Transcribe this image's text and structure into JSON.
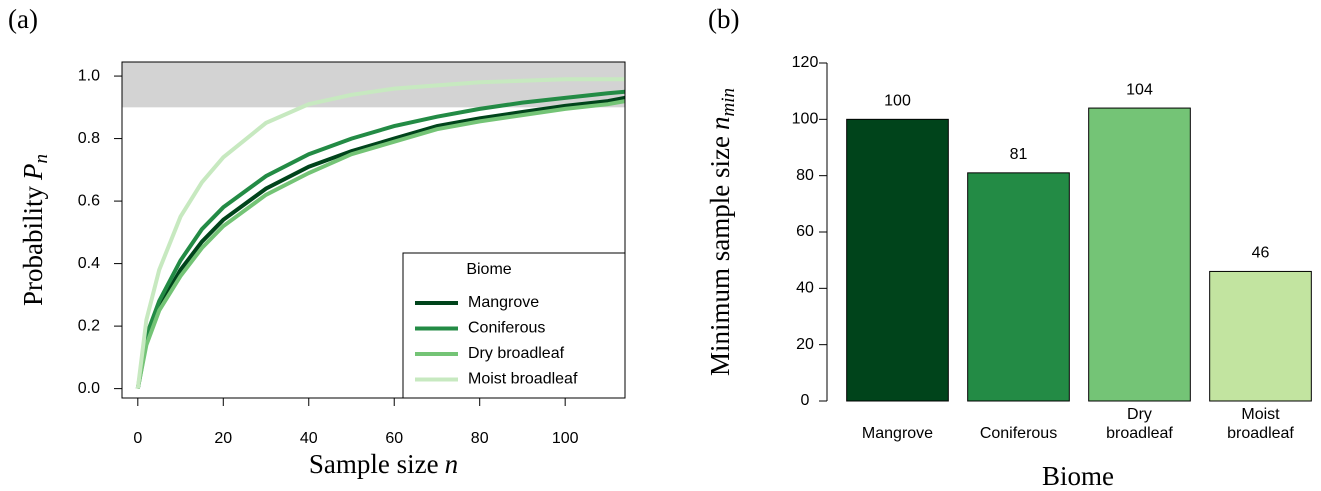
{
  "chart_data": [
    {
      "type": "line",
      "label": "(a)",
      "xlabel": "Sample size",
      "xlabel_symbol": "n",
      "ylabel": "Probability",
      "ylabel_symbol": "P",
      "ylabel_subscript": "n",
      "x": [
        0,
        2,
        5,
        10,
        15,
        20,
        30,
        40,
        50,
        60,
        70,
        80,
        90,
        100,
        110,
        114
      ],
      "series": [
        {
          "name": "Mangrove",
          "color": "#00441b",
          "values": [
            0,
            0.15,
            0.26,
            0.38,
            0.47,
            0.54,
            0.64,
            0.71,
            0.76,
            0.8,
            0.84,
            0.865,
            0.885,
            0.905,
            0.92,
            0.93
          ]
        },
        {
          "name": "Coniferous",
          "color": "#238b45",
          "values": [
            0,
            0.17,
            0.28,
            0.41,
            0.51,
            0.58,
            0.68,
            0.75,
            0.8,
            0.84,
            0.87,
            0.895,
            0.915,
            0.93,
            0.945,
            0.95
          ]
        },
        {
          "name": "Dry broadleaf",
          "color": "#74c476",
          "values": [
            0,
            0.14,
            0.25,
            0.36,
            0.45,
            0.52,
            0.62,
            0.69,
            0.75,
            0.79,
            0.83,
            0.855,
            0.875,
            0.895,
            0.91,
            0.92
          ]
        },
        {
          "name": "Moist broadleaf",
          "color": "#c7e9c0",
          "values": [
            0,
            0.22,
            0.38,
            0.55,
            0.66,
            0.74,
            0.85,
            0.91,
            0.94,
            0.96,
            0.97,
            0.98,
            0.985,
            0.99,
            0.99,
            0.99
          ]
        }
      ],
      "xlim": [
        -3.7,
        114
      ],
      "ylim": [
        -0.03,
        1.045
      ],
      "xticks": [
        0,
        20,
        40,
        60,
        80,
        100
      ],
      "yticks": [
        {
          "value": 0,
          "label": "0.0"
        },
        0.2,
        0.4,
        0.6,
        0.8,
        {
          "value": 1,
          "label": "1.0"
        }
      ],
      "shaded_band": [
        0.9,
        1.045
      ],
      "shaded_color": "#d3d3d3",
      "legend_title": "Biome",
      "legend": "lower right"
    },
    {
      "type": "bar",
      "label": "(b)",
      "xlabel": "Biome",
      "ylabel": "Minimum sample size",
      "ylabel_symbol": "n",
      "ylabel_subscript": "min",
      "categories": [
        "Mangrove",
        "Coniferous",
        "Dry\nbroadleaf",
        "Moist\nbroadleaf"
      ],
      "values": [
        100,
        81,
        104,
        46
      ],
      "colors": [
        "#00441b",
        "#238b45",
        "#74c476",
        "#c2e4a0"
      ],
      "ylim": [
        0,
        120
      ],
      "yticks": [
        0,
        20,
        40,
        60,
        80,
        100,
        120
      ]
    }
  ]
}
